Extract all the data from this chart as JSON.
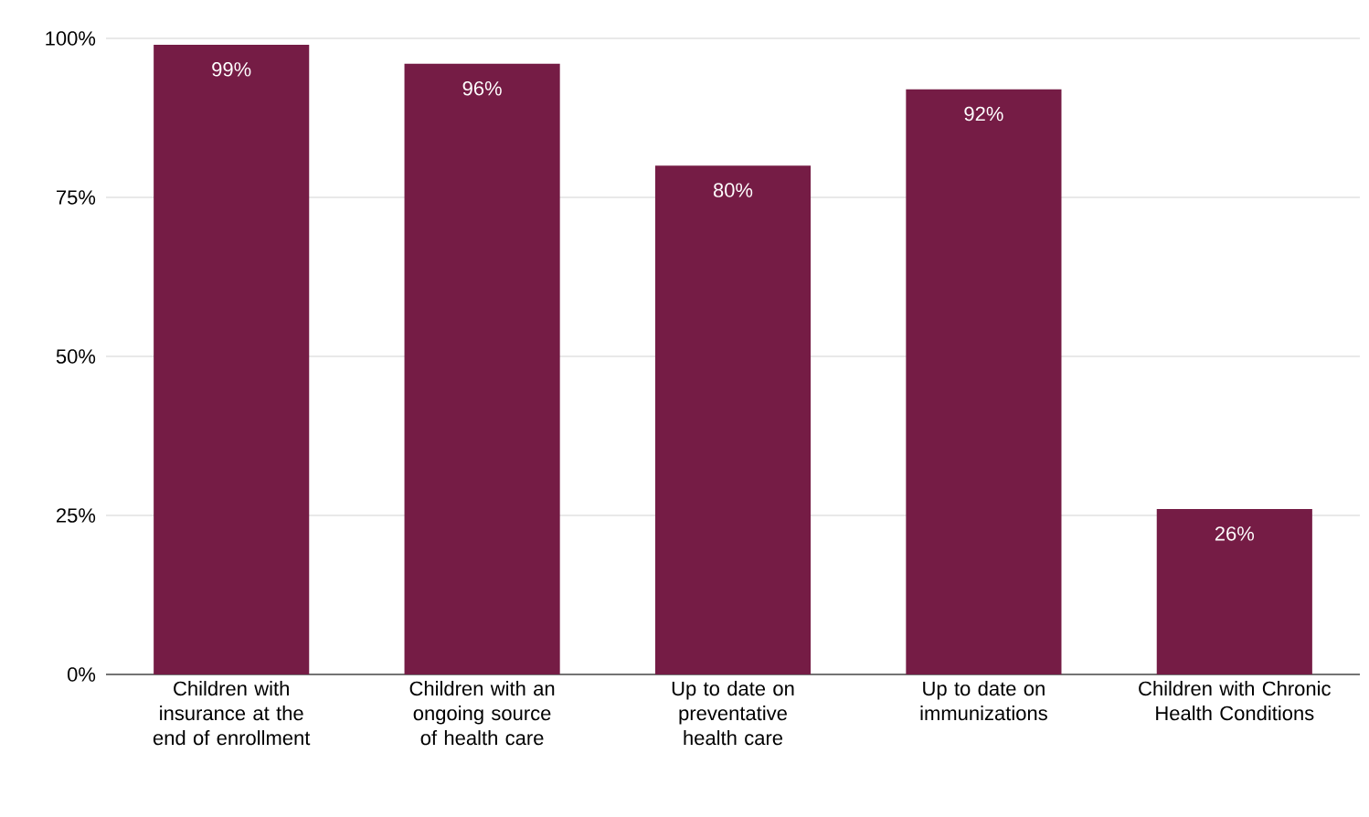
{
  "chart_data": {
    "type": "bar",
    "categories": [
      "Children with insurance at the end of enrollment",
      "Children with an ongoing source of health care",
      "Up to date on preventative health care",
      "Up to date on immunizations",
      "Children with Chronic Health Conditions"
    ],
    "values": [
      99,
      96,
      80,
      92,
      26
    ],
    "value_labels": [
      "99%",
      "96%",
      "80%",
      "92%",
      "26%"
    ],
    "color": "#751c45",
    "ylim": [
      0,
      100
    ],
    "yticks": [
      {
        "value": 0,
        "label": "0%"
      },
      {
        "value": 25,
        "label": "25%"
      },
      {
        "value": 50,
        "label": "50%"
      },
      {
        "value": 75,
        "label": "75%"
      },
      {
        "value": 100,
        "label": "100%"
      }
    ],
    "grid": "y"
  }
}
